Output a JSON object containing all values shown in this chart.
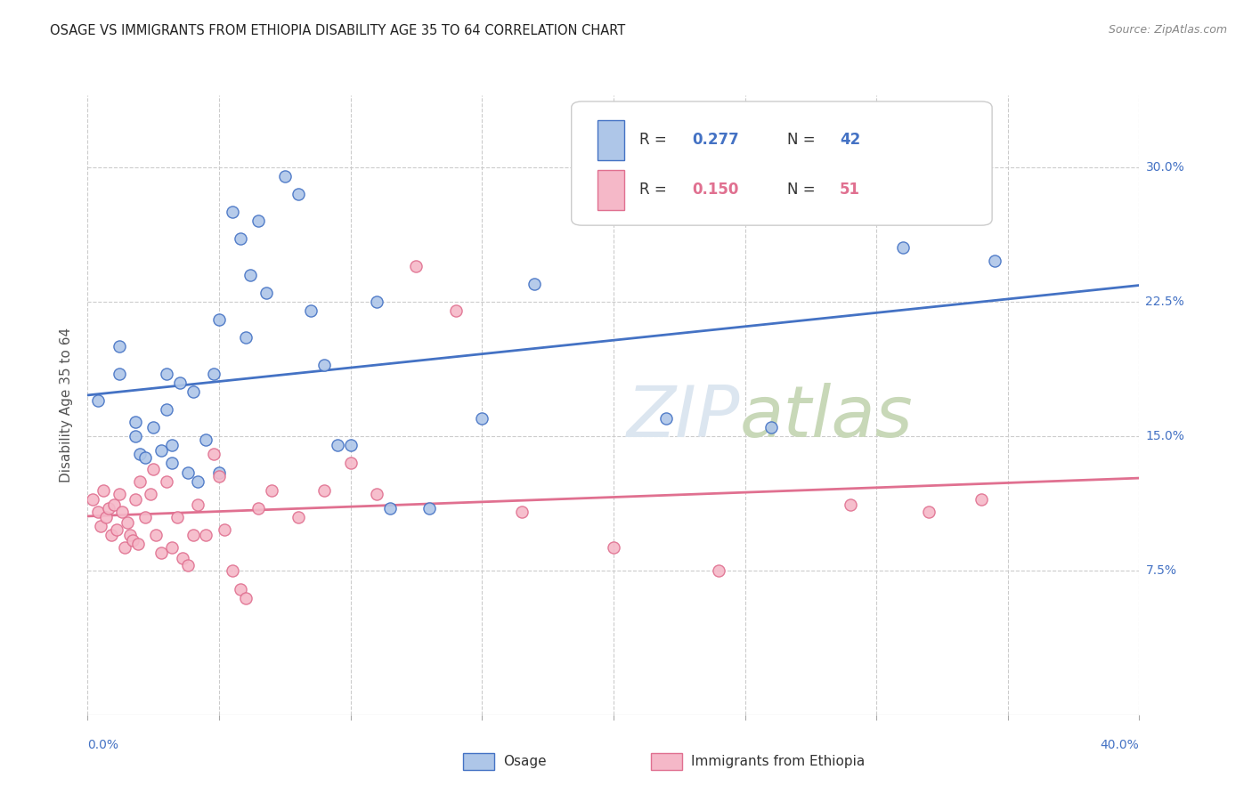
{
  "title": "OSAGE VS IMMIGRANTS FROM ETHIOPIA DISABILITY AGE 35 TO 64 CORRELATION CHART",
  "source": "Source: ZipAtlas.com",
  "ylabel": "Disability Age 35 to 64",
  "yticks_labels": [
    "30.0%",
    "22.5%",
    "15.0%",
    "7.5%"
  ],
  "ytick_vals": [
    0.3,
    0.225,
    0.15,
    0.075
  ],
  "xlim": [
    0.0,
    0.4
  ],
  "ylim": [
    -0.005,
    0.34
  ],
  "legend_labels": [
    "Osage",
    "Immigrants from Ethiopia"
  ],
  "r_osage": 0.277,
  "n_osage": 42,
  "r_ethiopia": 0.15,
  "n_ethiopia": 51,
  "color_osage": "#aec6e8",
  "color_ethiopia": "#f5b8c8",
  "line_color_osage": "#4472c4",
  "line_color_ethiopia": "#e07090",
  "background_color": "#ffffff",
  "grid_color": "#cccccc",
  "watermark_color": "#dce6f0",
  "osage_x": [
    0.004,
    0.012,
    0.012,
    0.018,
    0.018,
    0.02,
    0.022,
    0.025,
    0.028,
    0.03,
    0.03,
    0.032,
    0.032,
    0.035,
    0.038,
    0.04,
    0.042,
    0.045,
    0.048,
    0.05,
    0.05,
    0.055,
    0.058,
    0.06,
    0.062,
    0.065,
    0.068,
    0.075,
    0.08,
    0.085,
    0.09,
    0.095,
    0.1,
    0.11,
    0.115,
    0.13,
    0.15,
    0.17,
    0.22,
    0.26,
    0.31,
    0.345
  ],
  "osage_y": [
    0.17,
    0.2,
    0.185,
    0.15,
    0.158,
    0.14,
    0.138,
    0.155,
    0.142,
    0.185,
    0.165,
    0.145,
    0.135,
    0.18,
    0.13,
    0.175,
    0.125,
    0.148,
    0.185,
    0.215,
    0.13,
    0.275,
    0.26,
    0.205,
    0.24,
    0.27,
    0.23,
    0.295,
    0.285,
    0.22,
    0.19,
    0.145,
    0.145,
    0.225,
    0.11,
    0.11,
    0.16,
    0.235,
    0.16,
    0.155,
    0.255,
    0.248
  ],
  "ethiopia_x": [
    0.002,
    0.004,
    0.005,
    0.006,
    0.007,
    0.008,
    0.009,
    0.01,
    0.011,
    0.012,
    0.013,
    0.014,
    0.015,
    0.016,
    0.017,
    0.018,
    0.019,
    0.02,
    0.022,
    0.024,
    0.025,
    0.026,
    0.028,
    0.03,
    0.032,
    0.034,
    0.036,
    0.038,
    0.04,
    0.042,
    0.045,
    0.048,
    0.05,
    0.052,
    0.055,
    0.058,
    0.06,
    0.065,
    0.07,
    0.08,
    0.09,
    0.1,
    0.11,
    0.125,
    0.14,
    0.165,
    0.2,
    0.24,
    0.29,
    0.32,
    0.34
  ],
  "ethiopia_y": [
    0.115,
    0.108,
    0.1,
    0.12,
    0.105,
    0.11,
    0.095,
    0.112,
    0.098,
    0.118,
    0.108,
    0.088,
    0.102,
    0.095,
    0.092,
    0.115,
    0.09,
    0.125,
    0.105,
    0.118,
    0.132,
    0.095,
    0.085,
    0.125,
    0.088,
    0.105,
    0.082,
    0.078,
    0.095,
    0.112,
    0.095,
    0.14,
    0.128,
    0.098,
    0.075,
    0.065,
    0.06,
    0.11,
    0.12,
    0.105,
    0.12,
    0.135,
    0.118,
    0.245,
    0.22,
    0.108,
    0.088,
    0.075,
    0.112,
    0.108,
    0.115
  ]
}
